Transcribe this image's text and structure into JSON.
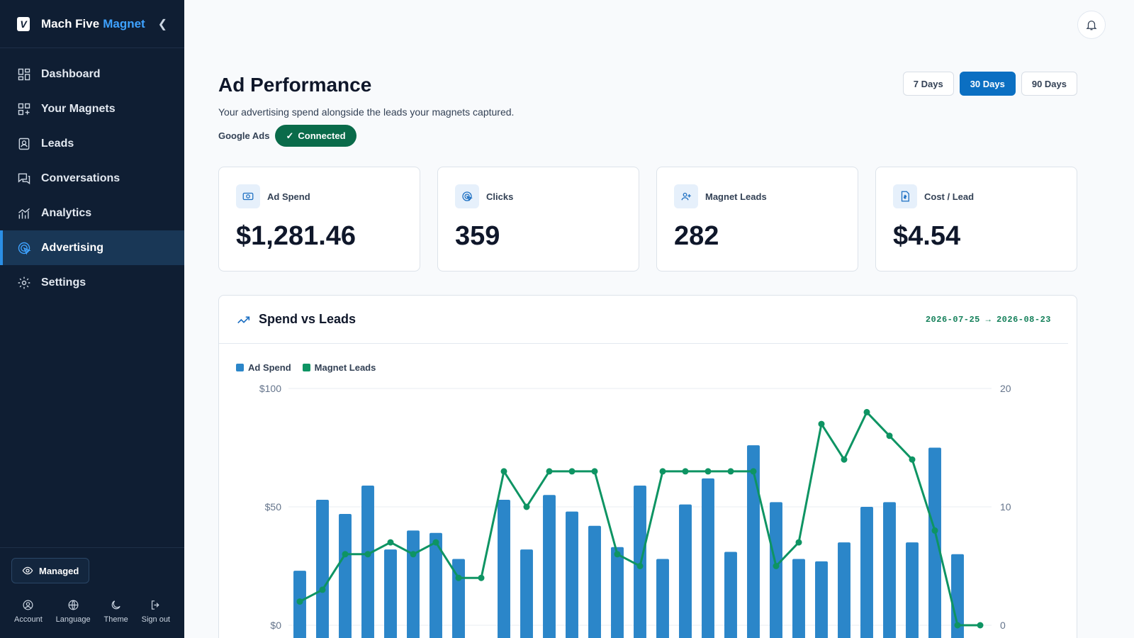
{
  "brand": {
    "name": "Mach Five",
    "accent": "Magnet",
    "logo_letter": "V"
  },
  "nav": [
    {
      "label": "Dashboard",
      "icon": "dashboard-icon"
    },
    {
      "label": "Your Magnets",
      "icon": "magnets-icon"
    },
    {
      "label": "Leads",
      "icon": "leads-icon"
    },
    {
      "label": "Conversations",
      "icon": "conversations-icon"
    },
    {
      "label": "Analytics",
      "icon": "analytics-icon"
    },
    {
      "label": "Advertising",
      "icon": "advertising-icon",
      "active": true
    },
    {
      "label": "Settings",
      "icon": "settings-icon"
    }
  ],
  "sidebar_footer": {
    "managed_label": "Managed",
    "actions": [
      {
        "label": "Account",
        "icon": "account-icon"
      },
      {
        "label": "Language",
        "icon": "globe-icon"
      },
      {
        "label": "Theme",
        "icon": "moon-icon"
      },
      {
        "label": "Sign out",
        "icon": "sign-out-icon"
      }
    ]
  },
  "header": {
    "title": "Ad Performance",
    "subtitle": "Your advertising spend alongside the leads your magnets captured.",
    "connection_label": "Google Ads",
    "connection_status": "Connected",
    "ranges": [
      {
        "label": "7 Days",
        "active": false
      },
      {
        "label": "30 Days",
        "active": true
      },
      {
        "label": "90 Days",
        "active": false
      }
    ]
  },
  "stats": [
    {
      "label": "Ad Spend",
      "value": "$1,281.46",
      "icon": "money-icon"
    },
    {
      "label": "Clicks",
      "value": "359",
      "icon": "click-icon"
    },
    {
      "label": "Magnet Leads",
      "value": "282",
      "icon": "user-plus-icon"
    },
    {
      "label": "Cost / Lead",
      "value": "$4.54",
      "icon": "invoice-icon"
    }
  ],
  "chart": {
    "title": "Spend vs Leads",
    "range": "2026-07-25 → 2026-08-23"
  },
  "colors": {
    "spend": "#2b86c9",
    "leads": "#0e9463",
    "accent": "#0b6fc2",
    "sidebar": "#0f1e33"
  },
  "chart_data": {
    "type": "bar",
    "title": "",
    "legend": [
      "Ad Spend",
      "Magnet Leads"
    ],
    "legend_placement": "top-left",
    "grid": true,
    "y_left": {
      "ticks": [
        "$0",
        "$50",
        "$100"
      ],
      "range": [
        0,
        100
      ]
    },
    "y_right": {
      "ticks": [
        "0",
        "10",
        "20"
      ],
      "range": [
        0,
        20
      ]
    },
    "series": [
      {
        "name": "Ad Spend",
        "type": "bar",
        "axis": "left",
        "values": [
          23,
          53,
          47,
          59,
          32,
          40,
          39,
          28,
          0,
          53,
          32,
          55,
          48,
          42,
          33,
          59,
          28,
          51,
          62,
          31,
          76,
          52,
          28,
          27,
          35,
          50,
          52,
          35,
          75,
          30,
          0
        ]
      },
      {
        "name": "Magnet Leads",
        "type": "line",
        "axis": "right",
        "values": [
          2,
          3,
          6,
          6,
          7,
          6,
          7,
          4,
          4,
          13,
          10,
          13,
          13,
          13,
          6,
          5,
          13,
          13,
          13,
          13,
          13,
          5,
          7,
          17,
          14,
          18,
          16,
          14,
          8,
          0,
          0
        ]
      }
    ]
  }
}
